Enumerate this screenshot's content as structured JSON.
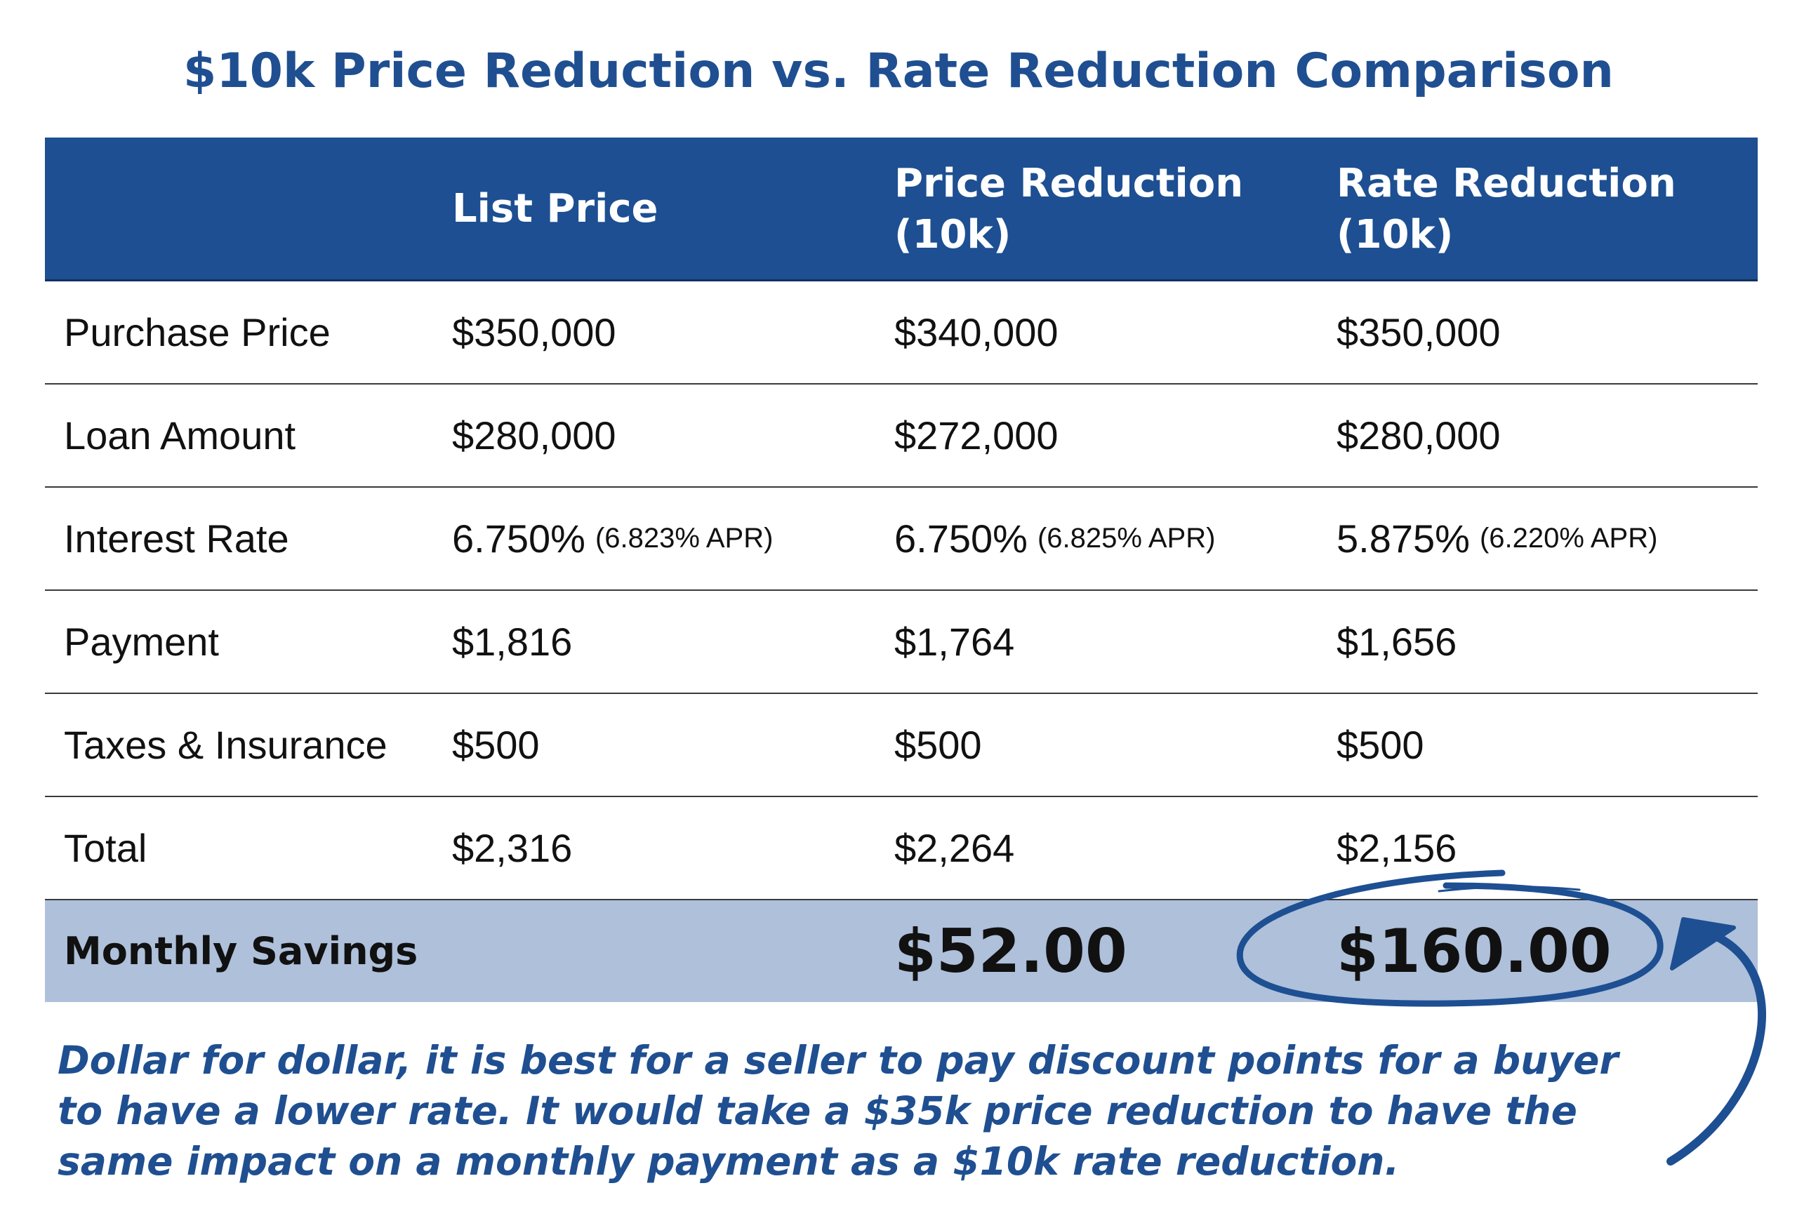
{
  "chart_data": {
    "type": "table",
    "title": "$10k Price Reduction vs. Rate Reduction Comparison",
    "columns": [
      "",
      "List Price",
      "Price Reduction (10k)",
      "Rate Reduction (10k)"
    ],
    "rows": [
      {
        "label": "Purchase Price",
        "values": [
          "$350,000",
          "$340,000",
          "$350,000"
        ]
      },
      {
        "label": "Loan Amount",
        "values": [
          "$280,000",
          "$272,000",
          "$280,000"
        ]
      },
      {
        "label": "Interest Rate",
        "values": [
          "6.750%",
          "6.750%",
          "5.875%"
        ],
        "apr": [
          "(6.823% APR)",
          "(6.825% APR)",
          "(6.220% APR)"
        ]
      },
      {
        "label": "Payment",
        "values": [
          "$1,816",
          "$1,764",
          "$1,656"
        ]
      },
      {
        "label": "Taxes & Insurance",
        "values": [
          "$500",
          "$500",
          "$500"
        ]
      },
      {
        "label": "Total",
        "values": [
          "$2,316",
          "$2,264",
          "$2,156"
        ]
      }
    ],
    "summary": {
      "label": "Monthly Savings",
      "values": [
        "",
        "$52.00",
        "$160.00"
      ]
    },
    "note": "Dollar for dollar, it is best for a seller to pay discount points for a buyer to have a lower rate. It would take a $35k price reduction to have the same impact on a monthly payment as a $10k rate reduction."
  },
  "colors": {
    "header_bg": "#1d4f92",
    "accent_text": "#1f4f91",
    "savings_bg": "#aec0da",
    "annotation": "#1d4f92"
  },
  "annotation": {
    "shape": "hand-drawn ellipse around $160.00 with curved arrow"
  }
}
